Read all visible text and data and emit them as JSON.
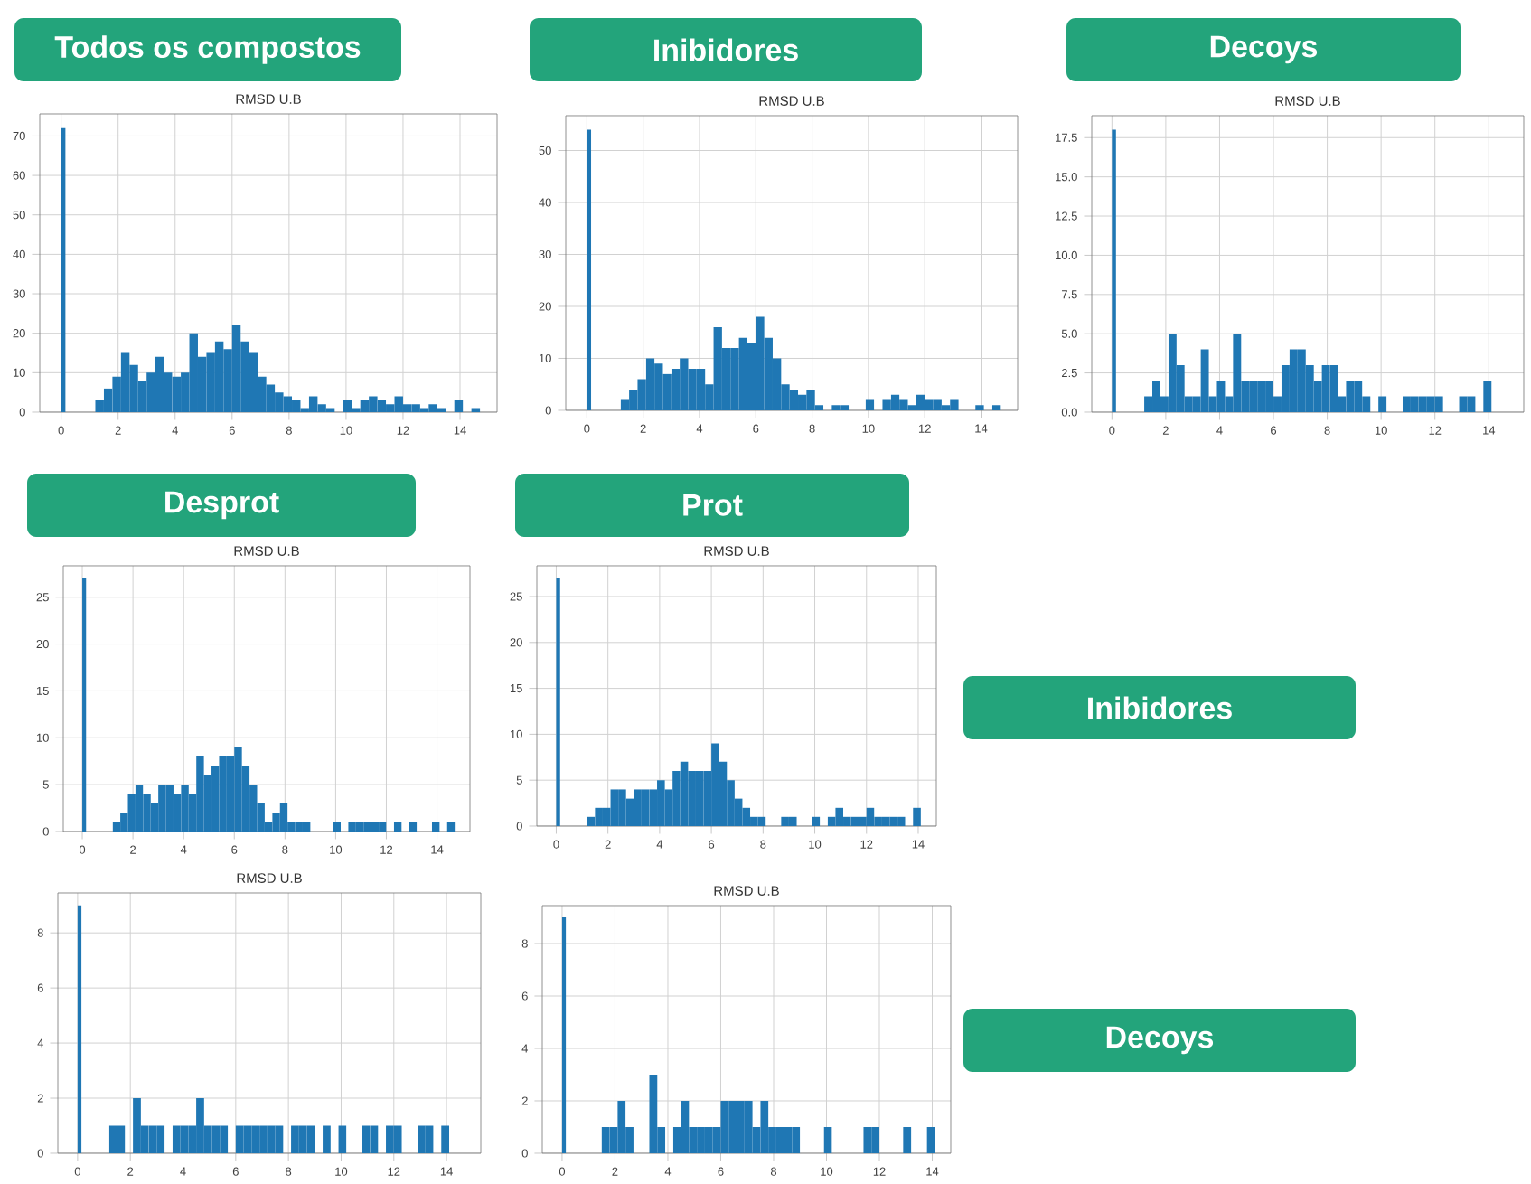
{
  "chart_data": [
    {
      "type": "histogram",
      "title": "RMSD U.B",
      "annotations": [
        "Todos os compostos"
      ],
      "color": "#1f77b4",
      "grid": true,
      "xlim": [
        -0.75,
        15.3
      ],
      "ylim": [
        0,
        75.6
      ],
      "xticks": [
        0,
        2,
        4,
        6,
        8,
        10,
        12,
        14
      ],
      "yticks": [
        0,
        10,
        20,
        30,
        40,
        50,
        60,
        70
      ],
      "bins": [
        0,
        0.15,
        1.2,
        1.5,
        1.8,
        2.1,
        2.4,
        2.7,
        3,
        3.3,
        3.6,
        3.9,
        4.2,
        4.5,
        4.8,
        5.1,
        5.4,
        5.7,
        6,
        6.3,
        6.6,
        6.9,
        7.2,
        7.5,
        7.8,
        8.1,
        8.4,
        8.7,
        9,
        9.3,
        9.6,
        9.9,
        10.2,
        10.5,
        10.8,
        11.1,
        11.4,
        11.7,
        12,
        12.3,
        12.6,
        12.9,
        13.2,
        13.5,
        13.8,
        14.1,
        14.4,
        14.7
      ],
      "values": [
        72,
        0,
        3,
        6,
        9,
        15,
        12,
        8,
        10,
        14,
        10,
        9,
        10,
        20,
        14,
        15,
        18,
        16,
        22,
        18,
        15,
        9,
        7,
        5,
        4,
        3,
        1,
        4,
        2,
        1,
        0,
        3,
        1,
        3,
        4,
        3,
        2,
        4,
        2,
        2,
        1,
        2,
        1,
        0,
        3,
        0,
        1
      ]
    },
    {
      "type": "histogram",
      "title": "RMSD U.B",
      "annotations": [
        "Inibidores"
      ],
      "color": "#1f77b4",
      "grid": true,
      "xlim": [
        -0.75,
        15.3
      ],
      "ylim": [
        0,
        56.7
      ],
      "xticks": [
        0,
        2,
        4,
        6,
        8,
        10,
        12,
        14
      ],
      "yticks": [
        0,
        10,
        20,
        30,
        40,
        50
      ],
      "bins": [
        0,
        0.15,
        1.2,
        1.5,
        1.8,
        2.1,
        2.4,
        2.7,
        3,
        3.3,
        3.6,
        3.9,
        4.2,
        4.5,
        4.8,
        5.1,
        5.4,
        5.7,
        6,
        6.3,
        6.6,
        6.9,
        7.2,
        7.5,
        7.8,
        8.1,
        8.4,
        8.7,
        9,
        9.3,
        9.9,
        10.2,
        10.5,
        10.8,
        11.1,
        11.4,
        11.7,
        12,
        12.3,
        12.6,
        12.9,
        13.2,
        13.8,
        14.1,
        14.4,
        14.7
      ],
      "values": [
        54,
        0,
        2,
        4,
        6,
        10,
        9,
        7,
        8,
        10,
        8,
        8,
        5,
        16,
        12,
        12,
        14,
        13,
        18,
        14,
        10,
        5,
        4,
        3,
        4,
        1,
        0,
        1,
        1,
        0,
        2,
        0,
        2,
        3,
        2,
        1,
        3,
        2,
        2,
        1,
        2,
        0,
        1,
        0,
        1
      ]
    },
    {
      "type": "histogram",
      "title": "RMSD U.B",
      "annotations": [
        "Decoys"
      ],
      "color": "#1f77b4",
      "grid": true,
      "xlim": [
        -0.75,
        15.3
      ],
      "ylim": [
        0,
        18.9
      ],
      "xticks": [
        0,
        2,
        4,
        6,
        8,
        10,
        12,
        14
      ],
      "yticks": [
        {
          "value": 0,
          "label": "0.0"
        },
        {
          "value": 2.5,
          "label": "2.5"
        },
        {
          "value": 5,
          "label": "5.0"
        },
        {
          "value": 7.5,
          "label": "7.5"
        },
        {
          "value": 10,
          "label": "10.0"
        },
        {
          "value": 12.5,
          "label": "12.5"
        },
        {
          "value": 15,
          "label": "15.0"
        },
        {
          "value": 17.5,
          "label": "17.5"
        }
      ],
      "bins": [
        0,
        0.15,
        1.2,
        1.5,
        1.8,
        2.1,
        2.4,
        2.7,
        3,
        3.3,
        3.6,
        3.9,
        4.2,
        4.5,
        4.8,
        5.1,
        5.4,
        5.7,
        6,
        6.3,
        6.6,
        6.9,
        7.2,
        7.5,
        7.8,
        8.1,
        8.4,
        8.7,
        9,
        9.3,
        9.6,
        9.9,
        10.2,
        10.8,
        11.1,
        11.4,
        11.7,
        12,
        12.3,
        12.9,
        13.2,
        13.5,
        13.8,
        14.1
      ],
      "values": [
        18,
        0,
        1,
        2,
        1,
        5,
        3,
        1,
        1,
        4,
        1,
        2,
        1,
        5,
        2,
        2,
        2,
        2,
        1,
        3,
        4,
        4,
        3,
        2,
        3,
        3,
        1,
        2,
        2,
        1,
        0,
        1,
        0,
        1,
        1,
        1,
        1,
        1,
        0,
        1,
        1,
        0,
        2
      ]
    },
    {
      "type": "histogram",
      "title": "RMSD U.B",
      "annotations": [
        "Desprot"
      ],
      "color": "#1f77b4",
      "grid": true,
      "xlim": [
        -0.75,
        15.3
      ],
      "ylim": [
        0,
        28.35
      ],
      "xticks": [
        0,
        2,
        4,
        6,
        8,
        10,
        12,
        14
      ],
      "yticks": [
        0,
        5,
        10,
        15,
        20,
        25
      ],
      "bins": [
        0,
        0.15,
        1.2,
        1.5,
        1.8,
        2.1,
        2.4,
        2.7,
        3,
        3.3,
        3.6,
        3.9,
        4.2,
        4.5,
        4.8,
        5.1,
        5.4,
        5.7,
        6,
        6.3,
        6.6,
        6.9,
        7.2,
        7.5,
        7.8,
        8.1,
        8.4,
        8.7,
        9,
        9.9,
        10.2,
        10.5,
        10.8,
        11.1,
        11.4,
        11.7,
        12,
        12.3,
        12.6,
        12.9,
        13.2,
        13.8,
        14.1,
        14.4,
        14.7
      ],
      "values": [
        27,
        0,
        1,
        2,
        4,
        5,
        4,
        3,
        5,
        5,
        4,
        5,
        4,
        8,
        6,
        7,
        8,
        8,
        9,
        7,
        5,
        3,
        1,
        2,
        3,
        1,
        1,
        1,
        0,
        1,
        0,
        1,
        1,
        1,
        1,
        1,
        0,
        1,
        0,
        1,
        0,
        1,
        0,
        1
      ]
    },
    {
      "type": "histogram",
      "title": "RMSD U.B",
      "annotations": [
        "Prot",
        "Inibidores"
      ],
      "color": "#1f77b4",
      "grid": true,
      "xlim": [
        -0.75,
        14.7
      ],
      "ylim": [
        0,
        28.35
      ],
      "xticks": [
        0,
        2,
        4,
        6,
        8,
        10,
        12,
        14
      ],
      "yticks": [
        0,
        5,
        10,
        15,
        20,
        25
      ],
      "bins": [
        0,
        0.15,
        1.2,
        1.5,
        1.8,
        2.1,
        2.4,
        2.7,
        3,
        3.3,
        3.6,
        3.9,
        4.2,
        4.5,
        4.8,
        5.1,
        5.4,
        5.7,
        6,
        6.3,
        6.6,
        6.9,
        7.2,
        7.5,
        7.8,
        8.1,
        8.7,
        9,
        9.3,
        9.9,
        10.2,
        10.5,
        10.8,
        11.1,
        11.4,
        11.7,
        12,
        12.3,
        12.6,
        12.9,
        13.2,
        13.5,
        13.8,
        14.1
      ],
      "values": [
        27,
        0,
        1,
        2,
        2,
        4,
        4,
        3,
        4,
        4,
        4,
        5,
        4,
        6,
        7,
        6,
        6,
        6,
        9,
        7,
        5,
        3,
        2,
        1,
        1,
        0,
        1,
        1,
        0,
        1,
        0,
        1,
        2,
        1,
        1,
        1,
        2,
        1,
        1,
        1,
        1,
        0,
        2
      ]
    },
    {
      "type": "histogram",
      "title": "RMSD U.B",
      "color": "#1f77b4",
      "grid": true,
      "xlim": [
        -0.75,
        15.3
      ],
      "ylim": [
        0,
        9.45
      ],
      "xticks": [
        0,
        2,
        4,
        6,
        8,
        10,
        12,
        14
      ],
      "yticks": [
        0,
        2,
        4,
        6,
        8
      ],
      "bins": [
        0,
        0.15,
        1.2,
        1.5,
        1.8,
        2.1,
        2.4,
        2.7,
        3,
        3.3,
        3.6,
        3.9,
        4.2,
        4.5,
        4.8,
        5.1,
        5.4,
        5.7,
        6,
        6.3,
        6.6,
        6.9,
        7.2,
        7.5,
        7.8,
        8.1,
        8.4,
        8.7,
        9,
        9.3,
        9.6,
        9.9,
        10.2,
        10.8,
        11.1,
        11.4,
        11.7,
        12,
        12.3,
        12.9,
        13.2,
        13.5,
        13.8,
        14.1
      ],
      "values": [
        9,
        0,
        1,
        1,
        0,
        2,
        1,
        1,
        1,
        0,
        1,
        1,
        1,
        2,
        1,
        1,
        1,
        0,
        1,
        1,
        1,
        1,
        1,
        1,
        0,
        1,
        1,
        1,
        0,
        1,
        0,
        1,
        0,
        1,
        1,
        0,
        1,
        1,
        0,
        1,
        1,
        0,
        1
      ]
    },
    {
      "type": "histogram",
      "title": "RMSD U.B",
      "annotations": [
        "Decoys"
      ],
      "color": "#1f77b4",
      "grid": true,
      "xlim": [
        -0.75,
        14.7
      ],
      "ylim": [
        0,
        9.45
      ],
      "xticks": [
        0,
        2,
        4,
        6,
        8,
        10,
        12,
        14
      ],
      "yticks": [
        0,
        2,
        4,
        6,
        8
      ],
      "bins": [
        0,
        0.15,
        1.5,
        1.8,
        2.1,
        2.4,
        2.7,
        3.3,
        3.6,
        3.9,
        4.2,
        4.5,
        4.8,
        5.1,
        5.4,
        5.7,
        6,
        6.3,
        6.6,
        6.9,
        7.2,
        7.5,
        7.8,
        8.1,
        8.4,
        8.7,
        9,
        9.9,
        10.2,
        11.4,
        11.7,
        12,
        12.9,
        13.2,
        13.8,
        14.1
      ],
      "values": [
        9,
        0,
        1,
        1,
        2,
        1,
        0,
        3,
        1,
        0,
        1,
        2,
        1,
        1,
        1,
        1,
        2,
        2,
        2,
        2,
        1,
        2,
        1,
        1,
        1,
        1,
        0,
        1,
        0,
        1,
        1,
        0,
        1,
        0,
        1
      ]
    }
  ]
}
